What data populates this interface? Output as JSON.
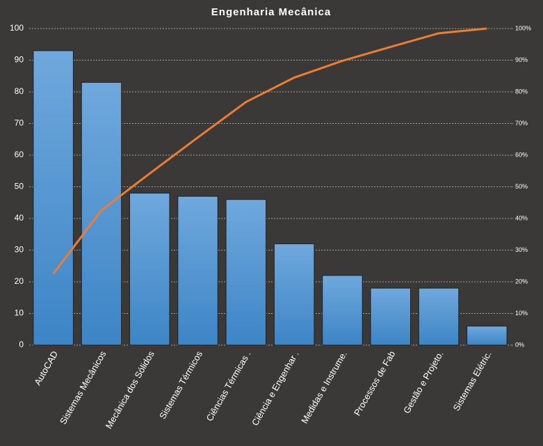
{
  "chart_data": {
    "type": "pareto",
    "title": "Engenharia Mecânica",
    "categories": [
      "AutoCAD",
      "Sistemas Mecânicos",
      "Mecânica dos Sólidos",
      "Sistemas Térmicos",
      "Ciências Térmicas .",
      "Ciência e Engenhar .",
      "Medidas e Instrume.",
      "Processos de Fab",
      "Gestão e Projeto.",
      "Sistemas Elétric."
    ],
    "series": [
      {
        "type": "bar",
        "color": "#5b9bd5",
        "values": [
          93,
          83,
          48,
          47,
          46,
          32,
          22,
          18,
          18,
          6
        ]
      },
      {
        "type": "line",
        "axis": "y2",
        "color": "#ed7d31",
        "values": [
          22.5,
          42.6,
          54.2,
          65.6,
          76.8,
          84.5,
          89.8,
          94.2,
          98.5,
          100
        ]
      }
    ],
    "ylim": [
      0,
      100
    ],
    "yticks": [
      0,
      10,
      20,
      30,
      40,
      50,
      60,
      70,
      80,
      90,
      100
    ],
    "y2lim": [
      0,
      100
    ],
    "y2ticks": [
      {
        "value": 0,
        "label": "0%"
      },
      {
        "value": 10,
        "label": "10%"
      },
      {
        "value": 20,
        "label": "20%"
      },
      {
        "value": 30,
        "label": "30%"
      },
      {
        "value": 40,
        "label": "40%"
      },
      {
        "value": 50,
        "label": "50%"
      },
      {
        "value": 60,
        "label": "60%"
      },
      {
        "value": 70,
        "label": "70%"
      },
      {
        "value": 80,
        "label": "80%"
      },
      {
        "value": 90,
        "label": "90%"
      },
      {
        "value": 100,
        "label": "100%"
      }
    ],
    "grid": true
  }
}
